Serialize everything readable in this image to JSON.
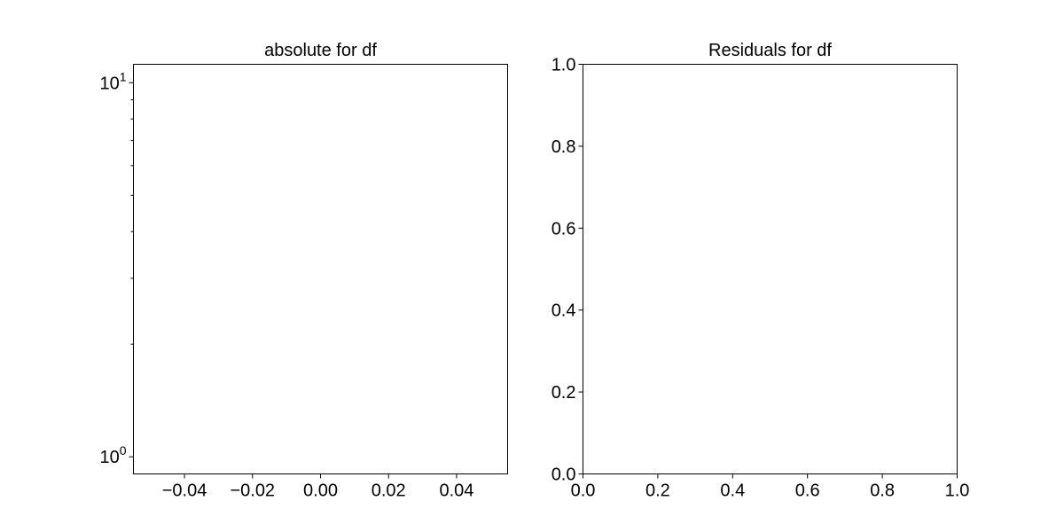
{
  "chart_data": [
    {
      "type": "scatter",
      "title": "absolute for df",
      "xlabel": "",
      "ylabel": "",
      "xscale": "linear",
      "yscale": "log",
      "xlim": [
        -0.055,
        0.055
      ],
      "ylim": [
        0.9,
        11.2
      ],
      "x_ticks": [
        -0.04,
        -0.02,
        0.0,
        0.02,
        0.04
      ],
      "x_tick_labels": [
        "−0.04",
        "−0.02",
        "0.00",
        "0.02",
        "0.04"
      ],
      "y_major_ticks": [
        1,
        10
      ],
      "y_tick_labels": [
        {
          "base": "10",
          "exponent": "0"
        },
        {
          "base": "10",
          "exponent": "1"
        }
      ],
      "y_minor_ticks": [
        2,
        3,
        4,
        5,
        6,
        7,
        8,
        9
      ],
      "grid": false,
      "series": []
    },
    {
      "type": "scatter",
      "title": "Residuals for df",
      "xlabel": "",
      "ylabel": "",
      "xscale": "linear",
      "yscale": "linear",
      "xlim": [
        0.0,
        1.0
      ],
      "ylim": [
        0.0,
        1.0
      ],
      "x_ticks": [
        0.0,
        0.2,
        0.4,
        0.6,
        0.8,
        1.0
      ],
      "x_tick_labels": [
        "0.0",
        "0.2",
        "0.4",
        "0.6",
        "0.8",
        "1.0"
      ],
      "y_ticks": [
        0.0,
        0.2,
        0.4,
        0.6,
        0.8,
        1.0
      ],
      "y_tick_labels": [
        "0.0",
        "0.2",
        "0.4",
        "0.6",
        "0.8",
        "1.0"
      ],
      "grid": false,
      "series": []
    }
  ]
}
